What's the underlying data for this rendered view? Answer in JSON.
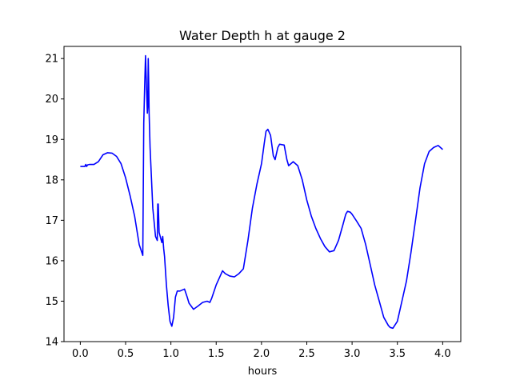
{
  "chart_data": {
    "type": "line",
    "title": "Water Depth h at gauge 2",
    "xlabel": "hours",
    "ylabel": "",
    "xlim": [
      -0.18,
      4.2
    ],
    "ylim": [
      14,
      21.3
    ],
    "xticks": [
      0.0,
      0.5,
      1.0,
      1.5,
      2.0,
      2.5,
      3.0,
      3.5,
      4.0
    ],
    "xtick_labels": [
      "0.0",
      "0.5",
      "1.0",
      "1.5",
      "2.0",
      "2.5",
      "3.0",
      "3.5",
      "4.0"
    ],
    "yticks": [
      14,
      15,
      16,
      17,
      18,
      19,
      20,
      21
    ],
    "ytick_labels": [
      "14",
      "15",
      "16",
      "17",
      "18",
      "19",
      "20",
      "21"
    ],
    "grid": false,
    "series": [
      {
        "color": "#0000ff",
        "x": [
          0.0,
          0.05,
          0.06,
          0.07,
          0.08,
          0.1,
          0.15,
          0.2,
          0.25,
          0.3,
          0.35,
          0.4,
          0.45,
          0.5,
          0.55,
          0.6,
          0.65,
          0.69,
          0.7,
          0.705,
          0.71,
          0.72,
          0.73,
          0.74,
          0.745,
          0.75,
          0.755,
          0.76,
          0.77,
          0.8,
          0.83,
          0.85,
          0.855,
          0.86,
          0.87,
          0.9,
          0.91,
          0.92,
          0.93,
          0.95,
          0.97,
          0.99,
          1.01,
          1.03,
          1.05,
          1.07,
          1.1,
          1.15,
          1.18,
          1.2,
          1.25,
          1.3,
          1.35,
          1.4,
          1.43,
          1.45,
          1.5,
          1.55,
          1.57,
          1.6,
          1.65,
          1.7,
          1.75,
          1.8,
          1.85,
          1.9,
          1.95,
          2.0,
          2.03,
          2.05,
          2.07,
          2.1,
          2.13,
          2.15,
          2.18,
          2.2,
          2.25,
          2.28,
          2.3,
          2.35,
          2.4,
          2.45,
          2.5,
          2.55,
          2.6,
          2.65,
          2.7,
          2.75,
          2.8,
          2.85,
          2.9,
          2.93,
          2.95,
          2.98,
          3.0,
          3.05,
          3.1,
          3.15,
          3.2,
          3.25,
          3.3,
          3.35,
          3.4,
          3.42,
          3.45,
          3.5,
          3.55,
          3.6,
          3.65,
          3.7,
          3.75,
          3.8,
          3.85,
          3.9,
          3.95,
          4.0
        ],
        "y": [
          18.33,
          18.33,
          18.38,
          18.33,
          18.37,
          18.38,
          18.38,
          18.45,
          18.62,
          18.67,
          18.66,
          18.58,
          18.4,
          18.05,
          17.6,
          17.1,
          16.4,
          16.13,
          19.4,
          19.8,
          20.3,
          21.07,
          20.3,
          19.65,
          19.8,
          21.0,
          20.4,
          19.65,
          18.8,
          17.3,
          16.6,
          16.5,
          17.4,
          17.4,
          16.7,
          16.45,
          16.6,
          16.3,
          16.1,
          15.4,
          14.9,
          14.5,
          14.38,
          14.6,
          15.1,
          15.25,
          15.25,
          15.3,
          15.1,
          14.95,
          14.8,
          14.88,
          14.97,
          15.0,
          14.97,
          15.07,
          15.4,
          15.65,
          15.75,
          15.68,
          15.62,
          15.6,
          15.68,
          15.8,
          16.5,
          17.3,
          17.9,
          18.4,
          18.9,
          19.2,
          19.25,
          19.1,
          18.6,
          18.5,
          18.8,
          18.88,
          18.86,
          18.5,
          18.35,
          18.45,
          18.35,
          18.0,
          17.5,
          17.1,
          16.8,
          16.55,
          16.35,
          16.22,
          16.25,
          16.5,
          16.9,
          17.15,
          17.22,
          17.2,
          17.15,
          16.98,
          16.8,
          16.4,
          15.9,
          15.4,
          15.0,
          14.6,
          14.4,
          14.35,
          14.33,
          14.5,
          15.0,
          15.5,
          16.2,
          17.0,
          17.8,
          18.4,
          18.7,
          18.8,
          18.85,
          18.75
        ]
      }
    ]
  }
}
